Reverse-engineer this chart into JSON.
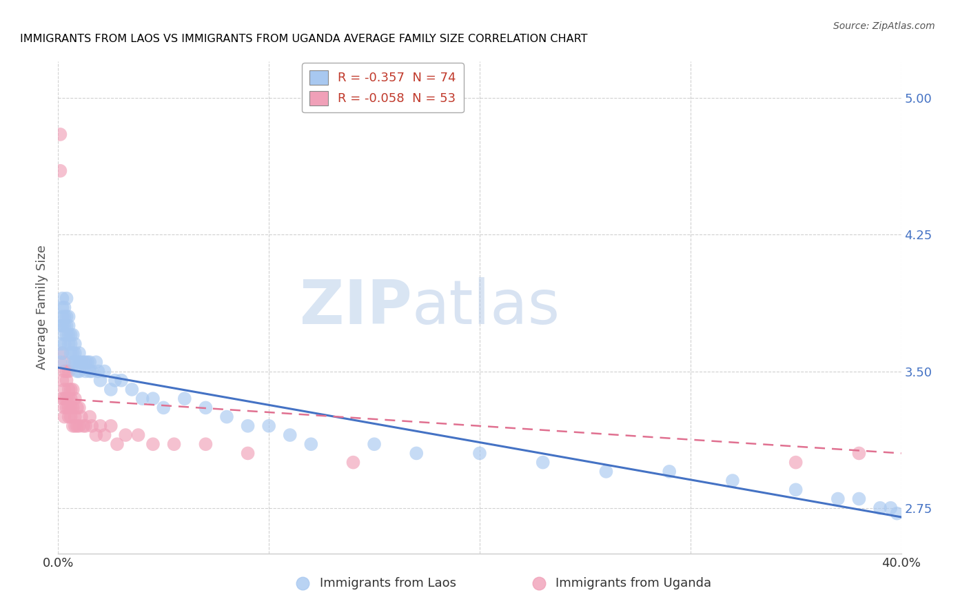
{
  "title": "IMMIGRANTS FROM LAOS VS IMMIGRANTS FROM UGANDA AVERAGE FAMILY SIZE CORRELATION CHART",
  "source": "Source: ZipAtlas.com",
  "ylabel": "Average Family Size",
  "xlabel": "",
  "xlim": [
    0.0,
    0.4
  ],
  "ylim": [
    2.5,
    5.2
  ],
  "yticks": [
    2.75,
    3.5,
    4.25,
    5.0
  ],
  "xticks": [
    0.0,
    0.1,
    0.2,
    0.3,
    0.4
  ],
  "xticklabels": [
    "0.0%",
    "",
    "",
    "",
    "40.0%"
  ],
  "grid_color": "#d0d0d0",
  "laos_color": "#a8c8f0",
  "uganda_color": "#f0a0b8",
  "laos_line_color": "#4472c4",
  "uganda_line_color": "#e07090",
  "legend_laos": "R = -0.357  N = 74",
  "legend_uganda": "R = -0.058  N = 53",
  "laos_x": [
    0.001,
    0.001,
    0.001,
    0.002,
    0.002,
    0.002,
    0.002,
    0.002,
    0.003,
    0.003,
    0.003,
    0.003,
    0.003,
    0.004,
    0.004,
    0.004,
    0.004,
    0.005,
    0.005,
    0.005,
    0.005,
    0.006,
    0.006,
    0.006,
    0.007,
    0.007,
    0.007,
    0.008,
    0.008,
    0.008,
    0.009,
    0.009,
    0.01,
    0.01,
    0.01,
    0.011,
    0.012,
    0.013,
    0.013,
    0.014,
    0.015,
    0.015,
    0.016,
    0.018,
    0.019,
    0.02,
    0.022,
    0.025,
    0.027,
    0.03,
    0.035,
    0.04,
    0.045,
    0.05,
    0.06,
    0.07,
    0.08,
    0.09,
    0.1,
    0.11,
    0.12,
    0.15,
    0.17,
    0.2,
    0.23,
    0.26,
    0.29,
    0.32,
    0.35,
    0.37,
    0.38,
    0.39,
    0.395,
    0.398
  ],
  "laos_y": [
    3.55,
    3.65,
    3.75,
    3.6,
    3.75,
    3.8,
    3.85,
    3.9,
    3.65,
    3.7,
    3.75,
    3.8,
    3.85,
    3.7,
    3.75,
    3.8,
    3.9,
    3.65,
    3.7,
    3.75,
    3.8,
    3.6,
    3.65,
    3.7,
    3.55,
    3.6,
    3.7,
    3.55,
    3.6,
    3.65,
    3.5,
    3.55,
    3.5,
    3.55,
    3.6,
    3.55,
    3.55,
    3.5,
    3.55,
    3.55,
    3.5,
    3.55,
    3.5,
    3.55,
    3.5,
    3.45,
    3.5,
    3.4,
    3.45,
    3.45,
    3.4,
    3.35,
    3.35,
    3.3,
    3.35,
    3.3,
    3.25,
    3.2,
    3.2,
    3.15,
    3.1,
    3.1,
    3.05,
    3.05,
    3.0,
    2.95,
    2.95,
    2.9,
    2.85,
    2.8,
    2.8,
    2.75,
    2.75,
    2.72
  ],
  "uganda_x": [
    0.001,
    0.001,
    0.002,
    0.002,
    0.002,
    0.003,
    0.003,
    0.003,
    0.003,
    0.003,
    0.003,
    0.004,
    0.004,
    0.004,
    0.004,
    0.005,
    0.005,
    0.005,
    0.005,
    0.005,
    0.006,
    0.006,
    0.006,
    0.006,
    0.007,
    0.007,
    0.007,
    0.008,
    0.008,
    0.008,
    0.009,
    0.009,
    0.01,
    0.01,
    0.011,
    0.012,
    0.013,
    0.015,
    0.016,
    0.018,
    0.02,
    0.022,
    0.025,
    0.028,
    0.032,
    0.038,
    0.045,
    0.055,
    0.07,
    0.09,
    0.14,
    0.35,
    0.38
  ],
  "uganda_y": [
    4.8,
    4.6,
    3.6,
    3.45,
    3.35,
    3.55,
    3.5,
    3.4,
    3.35,
    3.3,
    3.25,
    3.5,
    3.45,
    3.35,
    3.3,
    3.5,
    3.4,
    3.35,
    3.3,
    3.25,
    3.4,
    3.35,
    3.3,
    3.25,
    3.4,
    3.3,
    3.2,
    3.35,
    3.25,
    3.2,
    3.3,
    3.2,
    3.3,
    3.2,
    3.25,
    3.2,
    3.2,
    3.25,
    3.2,
    3.15,
    3.2,
    3.15,
    3.2,
    3.1,
    3.15,
    3.15,
    3.1,
    3.1,
    3.1,
    3.05,
    3.0,
    3.0,
    3.05
  ],
  "laos_trend_x": [
    0.0,
    0.4
  ],
  "laos_trend_y": [
    3.52,
    2.7
  ],
  "uganda_trend_x": [
    0.0,
    0.4
  ],
  "uganda_trend_y": [
    3.35,
    3.05
  ],
  "bg_color": "#ffffff",
  "title_color": "#000000",
  "axis_label_color": "#555555",
  "right_tick_color": "#4472c4"
}
